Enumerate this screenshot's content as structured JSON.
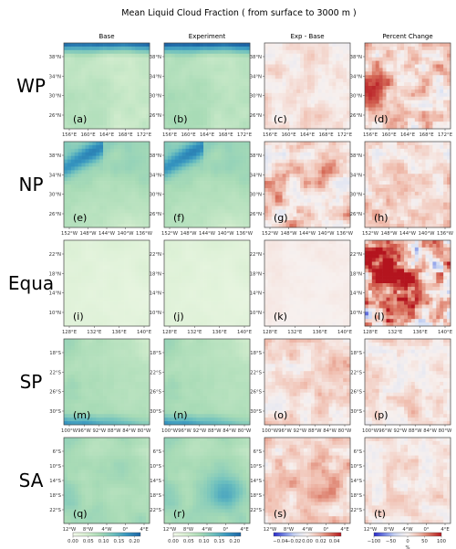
{
  "chart_data": {
    "type": "heatmap",
    "title": "Mean Liquid Cloud Fraction ( from surface to 3000 m )",
    "columns": [
      "Base",
      "Experiment",
      "Exp - Base",
      "Percent Change"
    ],
    "rows": [
      {
        "label": "WP",
        "letters": [
          "(a)",
          "(b)",
          "(c)",
          "(d)"
        ],
        "xticks": [
          "156°E",
          "160°E",
          "164°E",
          "168°E",
          "172°E"
        ],
        "yticks": [
          "38°N",
          "34°N",
          "30°N",
          "26°N"
        ]
      },
      {
        "label": "NP",
        "letters": [
          "(e)",
          "(f)",
          "(g)",
          "(h)"
        ],
        "xticks": [
          "152°W",
          "148°W",
          "144°W",
          "140°W",
          "136°W"
        ],
        "yticks": [
          "38°N",
          "34°N",
          "30°N",
          "26°N"
        ]
      },
      {
        "label": "Equa",
        "letters": [
          "(i)",
          "(j)",
          "(k)",
          "(l)"
        ],
        "xticks": [
          "128°E",
          "132°E",
          "136°E",
          "140°E"
        ],
        "yticks": [
          "22°N",
          "18°N",
          "14°N",
          "10°N"
        ]
      },
      {
        "label": "SP",
        "letters": [
          "(m)",
          "(n)",
          "(o)",
          "(p)"
        ],
        "xticks": [
          "100°W",
          "96°W",
          "92°W",
          "88°W",
          "84°W",
          "80°W"
        ],
        "yticks": [
          "18°S",
          "22°S",
          "26°S",
          "30°S"
        ]
      },
      {
        "label": "SA",
        "letters": [
          "(q)",
          "(r)",
          "(s)",
          "(t)"
        ],
        "xticks": [
          "12°W",
          "8°W",
          "4°W",
          "0°",
          "4°E"
        ],
        "yticks": [
          "6°S",
          "10°S",
          "14°S",
          "18°S",
          "22°S"
        ]
      }
    ],
    "colorbars": [
      {
        "column": "Base",
        "ticks": [
          "0.00",
          "0.05",
          "0.10",
          "0.15",
          "0.20"
        ],
        "range": [
          0,
          0.22
        ],
        "cmap": "GnBu",
        "unit": ""
      },
      {
        "column": "Experiment",
        "ticks": [
          "0.00",
          "0.05",
          "0.10",
          "0.15",
          "0.20"
        ],
        "range": [
          0,
          0.22
        ],
        "cmap": "GnBu",
        "unit": ""
      },
      {
        "column": "Exp - Base",
        "ticks": [
          "−0.04",
          "−0.02",
          "0.00",
          "0.02",
          "0.04"
        ],
        "range": [
          -0.05,
          0.05
        ],
        "cmap": "coolwarm",
        "unit": ""
      },
      {
        "column": "Percent Change",
        "ticks": [
          "−100",
          "−50",
          "0",
          "50",
          "100"
        ],
        "range": [
          -100,
          100
        ],
        "cmap": "bwr",
        "unit": "%"
      }
    ],
    "colors": {
      "base_low": "#f2f9ea",
      "base_high": "#1f73b0",
      "diff_pos": "#c8543f",
      "diff_neg": "#4a6fd3"
    }
  }
}
